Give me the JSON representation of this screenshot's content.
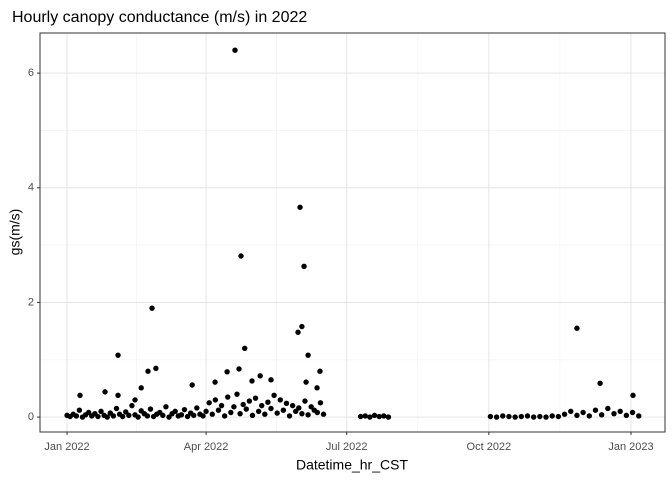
{
  "chart_data": {
    "type": "scatter",
    "title": "Hourly canopy conductance (m/s) in 2022",
    "x_label": "Datetime_hr_CST",
    "y_label": "gs(m/s)",
    "color": "#000000",
    "grid": true,
    "xlim": [
      -17.5,
      387
    ],
    "xticks": [
      {
        "value": 0,
        "label": "Jan 2022"
      },
      {
        "value": 90,
        "label": "Apr 2022"
      },
      {
        "value": 181,
        "label": "Jul 2022"
      },
      {
        "value": 273,
        "label": "Oct 2022"
      },
      {
        "value": 365,
        "label": "Jan 2023"
      }
    ],
    "x_minor_ticks": [
      45,
      135.5,
      227,
      319
    ],
    "ylim": [
      -0.26,
      6.7
    ],
    "yticks": [
      0,
      2,
      4,
      6
    ],
    "y_minor_ticks": [
      1,
      3,
      5
    ],
    "x": [
      108.7,
      150.8,
      112.6,
      153.4,
      55,
      330,
      152,
      149.5,
      115,
      33,
      156,
      57.5,
      52.4,
      111.3,
      103.6,
      163.7,
      125,
      132,
      119.7,
      95.8,
      345,
      154.7,
      81,
      48,
      161.8,
      8.4,
      24.6,
      366.3,
      33,
      44,
      0,
      2,
      4,
      6,
      8,
      10,
      12,
      14,
      16,
      18,
      20,
      22,
      24,
      26,
      28,
      30,
      32,
      34,
      36,
      38,
      40,
      42,
      44,
      46,
      48,
      50,
      52,
      54,
      56,
      58,
      60,
      62,
      64,
      66,
      68,
      70,
      72,
      74,
      76,
      78,
      80,
      82,
      84,
      86,
      88,
      90,
      92,
      94,
      96,
      98,
      100,
      102,
      104,
      106,
      108,
      110,
      112,
      114,
      116,
      118,
      120,
      122,
      124,
      126,
      128,
      130,
      132,
      134,
      136,
      138,
      140,
      142,
      144,
      146,
      148,
      150,
      152,
      154,
      156,
      158,
      160,
      162,
      164,
      166,
      190,
      193,
      196,
      199,
      202,
      205,
      208,
      274,
      278,
      282,
      286,
      290,
      294,
      298,
      302,
      306,
      310,
      314,
      318,
      322,
      326,
      330,
      334,
      338,
      342,
      346,
      350,
      354,
      358,
      362,
      366,
      370
    ],
    "values": [
      6.4,
      3.66,
      2.81,
      2.63,
      1.9,
      1.55,
      1.58,
      1.48,
      1.2,
      1.08,
      1.08,
      0.85,
      0.8,
      0.84,
      0.79,
      0.8,
      0.72,
      0.65,
      0.63,
      0.61,
      0.59,
      0.61,
      0.56,
      0.51,
      0.51,
      0.38,
      0.44,
      0.38,
      0.38,
      0.3,
      0.03,
      0.01,
      0.05,
      0.02,
      0.12,
      0.0,
      0.04,
      0.08,
      0.02,
      0.06,
      0.01,
      0.1,
      0.03,
      0.0,
      0.07,
      0.02,
      0.15,
      0.05,
      0.01,
      0.09,
      0.03,
      0.2,
      0.04,
      0.0,
      0.11,
      0.06,
      0.02,
      0.14,
      0.01,
      0.05,
      0.08,
      0.03,
      0.18,
      0.0,
      0.06,
      0.1,
      0.02,
      0.04,
      0.13,
      0.01,
      0.07,
      0.03,
      0.16,
      0.05,
      0.02,
      0.1,
      0.25,
      0.05,
      0.3,
      0.12,
      0.2,
      0.02,
      0.35,
      0.08,
      0.18,
      0.4,
      0.06,
      0.22,
      0.14,
      0.28,
      0.03,
      0.33,
      0.1,
      0.2,
      0.05,
      0.26,
      0.15,
      0.38,
      0.07,
      0.3,
      0.12,
      0.24,
      0.02,
      0.2,
      0.1,
      0.16,
      0.06,
      0.28,
      0.04,
      0.18,
      0.12,
      0.08,
      0.25,
      0.05,
      0.01,
      0.02,
      0.0,
      0.03,
      0.01,
      0.02,
      0.0,
      0.01,
      0.0,
      0.02,
      0.01,
      0.0,
      0.01,
      0.02,
      0.0,
      0.01,
      0.0,
      0.02,
      0.01,
      0.05,
      0.1,
      0.03,
      0.08,
      0.02,
      0.12,
      0.04,
      0.15,
      0.06,
      0.1,
      0.03,
      0.08,
      0.02
    ]
  }
}
